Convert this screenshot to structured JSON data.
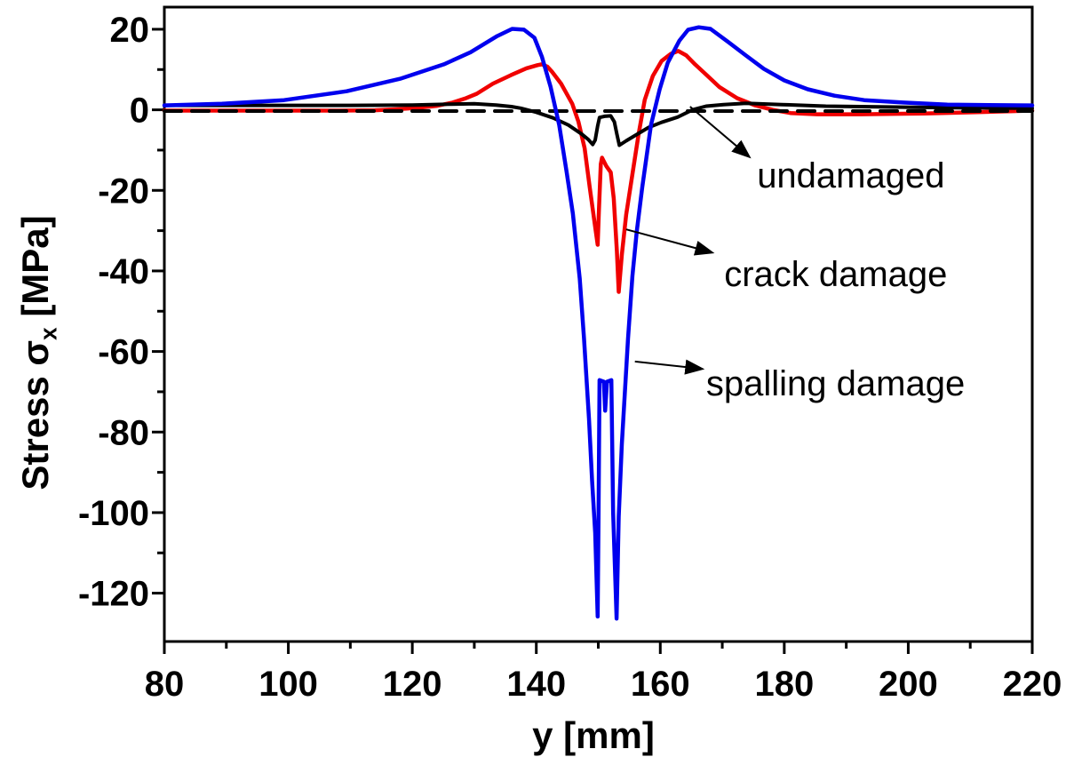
{
  "chart_data": {
    "type": "line",
    "title": "",
    "xlabel": "y [mm]",
    "ylabel": "Stress σx [MPa]",
    "ylabel_parts": {
      "main": "Stress σ",
      "sub": "x",
      "unit": " [MPa]"
    },
    "xlim": [
      80,
      220
    ],
    "ylim": [
      -132,
      25.5
    ],
    "x_ticks": [
      80,
      100,
      120,
      140,
      160,
      180,
      200,
      220
    ],
    "x_minor_ticks": [
      90,
      110,
      130,
      150,
      170,
      190,
      210
    ],
    "y_ticks": [
      20,
      0,
      -20,
      -40,
      -60,
      -80,
      -100,
      -120
    ],
    "y_minor_ticks": [
      10,
      -10,
      -30,
      -50,
      -70,
      -90,
      -110
    ],
    "grid": false,
    "legend_position": "inline-annotations",
    "colors": {
      "background": "#ffffff",
      "frame": "#000000",
      "undamaged": "#000000",
      "crack": "#f00000",
      "spalling": "#0000ee",
      "reference": "#000000"
    },
    "series": [
      {
        "id": "crack-damage",
        "label": "crack damage",
        "color": "#f00000",
        "width": 4.5,
        "dash": null,
        "points": [
          [
            80,
            -0.2
          ],
          [
            95,
            -0.2
          ],
          [
            108,
            -0.2
          ],
          [
            114,
            -0.1
          ],
          [
            118,
            0.2
          ],
          [
            121,
            0.5
          ],
          [
            124,
            1.0
          ],
          [
            126.5,
            1.8
          ],
          [
            128.5,
            2.8
          ],
          [
            130.4,
            4.0
          ],
          [
            133,
            6.5
          ],
          [
            135.9,
            8.6
          ],
          [
            138.4,
            10.3
          ],
          [
            140.2,
            11.1
          ],
          [
            140.9,
            11.3
          ],
          [
            141.8,
            10.7
          ],
          [
            142.5,
            9.5
          ],
          [
            144,
            6.5
          ],
          [
            145.8,
            1.5
          ],
          [
            146.8,
            -3.0
          ],
          [
            147.8,
            -9.5
          ],
          [
            148.6,
            -19.0
          ],
          [
            149.4,
            -28.0
          ],
          [
            149.9,
            -33.5
          ],
          [
            150.1,
            -25.0
          ],
          [
            150.4,
            -13.5
          ],
          [
            150.6,
            -11.9
          ],
          [
            151.3,
            -14.0
          ],
          [
            152,
            -15.5
          ],
          [
            152.5,
            -22.0
          ],
          [
            153,
            -35.0
          ],
          [
            153.3,
            -45.2
          ],
          [
            153.8,
            -36.0
          ],
          [
            154.5,
            -26.0
          ],
          [
            155.5,
            -16.0
          ],
          [
            156.5,
            -6.0
          ],
          [
            157.5,
            2.5
          ],
          [
            158.8,
            8.4
          ],
          [
            160.2,
            12.1
          ],
          [
            161.7,
            13.9
          ],
          [
            162.9,
            14.6
          ],
          [
            164.2,
            13.5
          ],
          [
            165.6,
            11.3
          ],
          [
            167.5,
            8.6
          ],
          [
            169.5,
            5.7
          ],
          [
            172.4,
            2.9
          ],
          [
            175.3,
            1.1
          ],
          [
            178.1,
            0.0
          ],
          [
            181,
            -0.8
          ],
          [
            185.3,
            -1.1
          ],
          [
            192.4,
            -1.1
          ],
          [
            202.5,
            -0.9
          ],
          [
            211.1,
            -0.6
          ],
          [
            220,
            -0.2
          ]
        ]
      },
      {
        "id": "reference-line",
        "label": "",
        "color": "#000000",
        "width": 4,
        "dash": "19 12",
        "points": [
          [
            80,
            -0.3
          ],
          [
            220,
            -0.3
          ]
        ]
      },
      {
        "id": "undamaged",
        "label": "undamaged",
        "color": "#000000",
        "width": 4,
        "dash": null,
        "points": [
          [
            80,
            1.1
          ],
          [
            96,
            1.1
          ],
          [
            110,
            1.1
          ],
          [
            120,
            1.2
          ],
          [
            126,
            1.4
          ],
          [
            130,
            1.5
          ],
          [
            133.5,
            1.2
          ],
          [
            136,
            0.8
          ],
          [
            137.5,
            0.4
          ],
          [
            140,
            -0.6
          ],
          [
            142.7,
            -2.0
          ],
          [
            145.2,
            -3.8
          ],
          [
            147.3,
            -6.0
          ],
          [
            148.4,
            -7.4
          ],
          [
            149.1,
            -8.6
          ],
          [
            149.5,
            -7.5
          ],
          [
            149.9,
            -4.0
          ],
          [
            150.2,
            -1.9
          ],
          [
            151,
            -1.6
          ],
          [
            152,
            -1.5
          ],
          [
            152.6,
            -3.0
          ],
          [
            153,
            -6.0
          ],
          [
            153.4,
            -8.8
          ],
          [
            154.5,
            -7.7
          ],
          [
            155.9,
            -6.4
          ],
          [
            158.1,
            -4.4
          ],
          [
            160.2,
            -3.1
          ],
          [
            162.8,
            -1.8
          ],
          [
            165.2,
            0.0
          ],
          [
            167.4,
            0.9
          ],
          [
            170.2,
            1.3
          ],
          [
            173.8,
            1.6
          ],
          [
            179.6,
            1.3
          ],
          [
            186.7,
            0.9
          ],
          [
            196.7,
            0.7
          ],
          [
            208.2,
            0.5
          ],
          [
            220,
            0.4
          ]
        ]
      },
      {
        "id": "spalling-damage",
        "label": "spalling damage",
        "color": "#0000ee",
        "width": 4.5,
        "dash": null,
        "points": [
          [
            80,
            1.1
          ],
          [
            89.3,
            1.5
          ],
          [
            99.3,
            2.4
          ],
          [
            109.4,
            4.6
          ],
          [
            118,
            7.7
          ],
          [
            125.1,
            11.3
          ],
          [
            129.4,
            14.3
          ],
          [
            133.7,
            18.3
          ],
          [
            136.1,
            20.1
          ],
          [
            138,
            19.9
          ],
          [
            139.7,
            17.9
          ],
          [
            140.9,
            13.2
          ],
          [
            142.3,
            5.7
          ],
          [
            143.7,
            -3.8
          ],
          [
            144.9,
            -15.5
          ],
          [
            145.9,
            -25.8
          ],
          [
            147,
            -41.9
          ],
          [
            147.7,
            -56.7
          ],
          [
            148.5,
            -76.6
          ],
          [
            149,
            -92.0
          ],
          [
            149.5,
            -105.0
          ],
          [
            149.9,
            -125.8
          ],
          [
            150.05,
            -100.0
          ],
          [
            150.2,
            -67.1
          ],
          [
            150.9,
            -67.5
          ],
          [
            151.1,
            -74.7
          ],
          [
            151.4,
            -67.5
          ],
          [
            152.1,
            -67.1
          ],
          [
            152.4,
            -100.0
          ],
          [
            152.95,
            -126.3
          ],
          [
            153.3,
            -101.0
          ],
          [
            153.8,
            -83.0
          ],
          [
            154.8,
            -56.7
          ],
          [
            155.5,
            -41.3
          ],
          [
            156.2,
            -30.2
          ],
          [
            157.1,
            -19.2
          ],
          [
            158.5,
            -3.8
          ],
          [
            159.9,
            5.1
          ],
          [
            161.2,
            11.7
          ],
          [
            163.1,
            17.2
          ],
          [
            164.5,
            19.9
          ],
          [
            166.2,
            20.5
          ],
          [
            168.1,
            20.1
          ],
          [
            171,
            16.8
          ],
          [
            173.8,
            13.5
          ],
          [
            176.7,
            10.2
          ],
          [
            180,
            7.3
          ],
          [
            183.8,
            5.1
          ],
          [
            188.1,
            3.5
          ],
          [
            192.9,
            2.4
          ],
          [
            199.2,
            1.8
          ],
          [
            206.3,
            1.3
          ],
          [
            213,
            1.2
          ],
          [
            220,
            1.1
          ]
        ]
      }
    ],
    "annotations": [
      {
        "id": "undamaged",
        "text": "undamaged",
        "arrow_from": [
          164.8,
          0.8
        ],
        "arrow_to": [
          174.3,
          -11.6
        ],
        "text_at": [
          175.6,
          -19.3
        ]
      },
      {
        "id": "crack-damage",
        "text": "crack damage",
        "arrow_from": [
          154.5,
          -29.7
        ],
        "arrow_to": [
          168.3,
          -35.4
        ],
        "text_at": [
          170.3,
          -43.8
        ]
      },
      {
        "id": "spalling-damage",
        "text": "spalling damage",
        "arrow_from": [
          155.9,
          -62.5
        ],
        "arrow_to": [
          166.7,
          -64.3
        ],
        "text_at": [
          167.4,
          -70.9
        ]
      }
    ]
  }
}
